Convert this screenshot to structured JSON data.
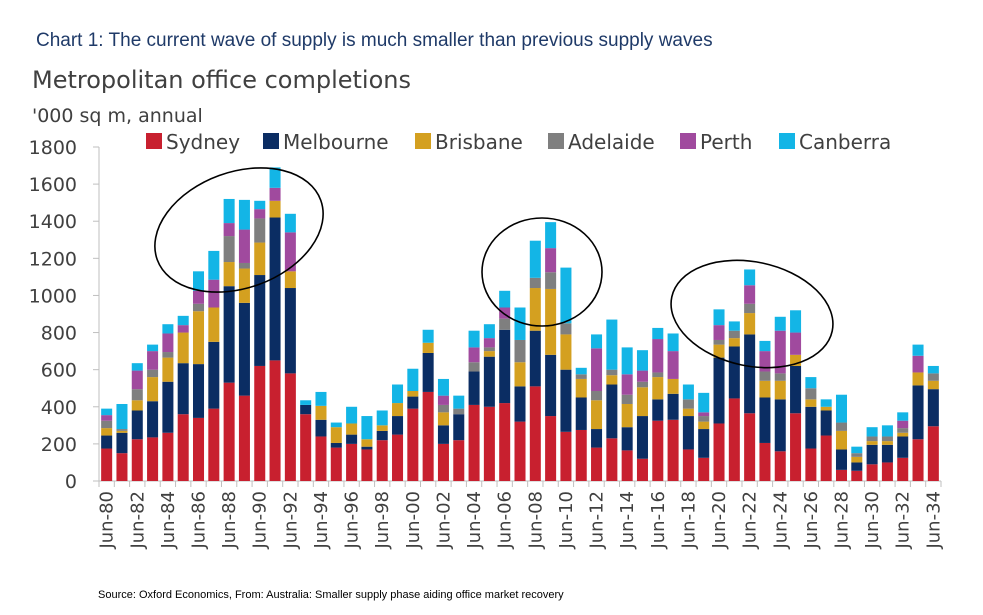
{
  "header": {
    "title": "Chart 1: The current wave of supply is much smaller than previous supply waves"
  },
  "source": "Source: Oxford Economics, From: Australia: Smaller supply phase aiding office market recovery",
  "chart_data": {
    "type": "bar",
    "stacked": true,
    "title": "Metropolitan office completions",
    "ylabel": "'000 sq m, annual",
    "xlabel": "",
    "ylim": [
      0,
      1800
    ],
    "yticks": [
      0,
      200,
      400,
      600,
      800,
      1000,
      1200,
      1400,
      1600,
      1800
    ],
    "grid": false,
    "legend_position": "top",
    "categories": [
      "Jun-80",
      "Jun-81",
      "Jun-82",
      "Jun-83",
      "Jun-84",
      "Jun-85",
      "Jun-86",
      "Jun-87",
      "Jun-88",
      "Jun-89",
      "Jun-90",
      "Jun-91",
      "Jun-92",
      "Jun-93",
      "Jun-94",
      "Jun-95",
      "Jun-96",
      "Jun-97",
      "Jun-98",
      "Jun-99",
      "Jun-00",
      "Jun-01",
      "Jun-02",
      "Jun-03",
      "Jun-04",
      "Jun-05",
      "Jun-06",
      "Jun-07",
      "Jun-08",
      "Jun-09",
      "Jun-10",
      "Jun-11",
      "Jun-12",
      "Jun-13",
      "Jun-14",
      "Jun-15",
      "Jun-16",
      "Jun-17",
      "Jun-18",
      "Jun-19",
      "Jun-20",
      "Jun-21",
      "Jun-22",
      "Jun-23",
      "Jun-24",
      "Jun-25",
      "Jun-26",
      "Jun-27",
      "Jun-28",
      "Jun-29",
      "Jun-30",
      "Jun-31",
      "Jun-32",
      "Jun-33",
      "Jun-34"
    ],
    "tick_labels": [
      "Jun-80",
      "Jun-82",
      "Jun-84",
      "Jun-86",
      "Jun-88",
      "Jun-90",
      "Jun-92",
      "Jun-94",
      "Jun-96",
      "Jun-98",
      "Jun-00",
      "Jun-02",
      "Jun-04",
      "Jun-06",
      "Jun-08",
      "Jun-10",
      "Jun-12",
      "Jun-14",
      "Jun-16",
      "Jun-18",
      "Jun-20",
      "Jun-22",
      "Jun-24",
      "Jun-26",
      "Jun-28",
      "Jun-30",
      "Jun-32",
      "Jun-34"
    ],
    "series": [
      {
        "name": "Sydney",
        "color": "#c8202f",
        "values": [
          175,
          150,
          225,
          235,
          260,
          360,
          340,
          390,
          530,
          460,
          620,
          650,
          580,
          360,
          240,
          180,
          200,
          170,
          220,
          250,
          390,
          480,
          200,
          220,
          410,
          400,
          420,
          320,
          510,
          350,
          265,
          275,
          180,
          230,
          165,
          120,
          325,
          330,
          170,
          125,
          310,
          445,
          365,
          205,
          160,
          365,
          175,
          245,
          60,
          55,
          90,
          100,
          125,
          225,
          295
        ]
      },
      {
        "name": "Melbourne",
        "color": "#0b2d63",
        "values": [
          70,
          110,
          155,
          195,
          275,
          275,
          290,
          360,
          520,
          500,
          490,
          770,
          460,
          50,
          90,
          25,
          50,
          15,
          50,
          100,
          65,
          210,
          100,
          140,
          180,
          270,
          395,
          190,
          300,
          330,
          335,
          175,
          100,
          290,
          125,
          230,
          115,
          140,
          180,
          155,
          355,
          280,
          425,
          245,
          280,
          255,
          225,
          135,
          110,
          45,
          105,
          95,
          115,
          290,
          200
        ]
      },
      {
        "name": "Brisbane",
        "color": "#d4a020",
        "values": [
          40,
          10,
          55,
          130,
          130,
          165,
          285,
          185,
          130,
          185,
          175,
          90,
          90,
          0,
          75,
          85,
          60,
          40,
          30,
          70,
          30,
          55,
          70,
          0,
          0,
          30,
          0,
          130,
          230,
          355,
          190,
          100,
          155,
          50,
          125,
          155,
          120,
          80,
          40,
          40,
          70,
          45,
          115,
          90,
          100,
          60,
          40,
          20,
          100,
          30,
          20,
          20,
          20,
          70,
          45
        ]
      },
      {
        "name": "Adelaide",
        "color": "#7f7f7f",
        "values": [
          40,
          10,
          60,
          40,
          30,
          0,
          40,
          0,
          140,
          30,
          130,
          0,
          0,
          0,
          0,
          0,
          0,
          0,
          0,
          0,
          0,
          0,
          40,
          30,
          50,
          20,
          60,
          120,
          55,
          90,
          60,
          25,
          50,
          30,
          50,
          30,
          25,
          0,
          50,
          30,
          25,
          40,
          50,
          50,
          40,
          0,
          60,
          0,
          45,
          20,
          25,
          25,
          25,
          0,
          40
        ]
      },
      {
        "name": "Perth",
        "color": "#a04a9e",
        "values": [
          30,
          0,
          100,
          100,
          100,
          40,
          70,
          150,
          70,
          180,
          50,
          70,
          210,
          0,
          0,
          0,
          0,
          0,
          0,
          0,
          0,
          0,
          50,
          0,
          80,
          50,
          60,
          0,
          0,
          130,
          0,
          0,
          230,
          0,
          110,
          60,
          180,
          150,
          0,
          20,
          80,
          0,
          100,
          110,
          230,
          120,
          0,
          0,
          0,
          0,
          0,
          0,
          40,
          90,
          0
        ]
      },
      {
        "name": "Canberra",
        "color": "#13b5e6",
        "values": [
          35,
          135,
          40,
          35,
          50,
          50,
          105,
          155,
          130,
          160,
          45,
          110,
          100,
          25,
          75,
          25,
          90,
          125,
          80,
          100,
          120,
          70,
          90,
          70,
          90,
          75,
          90,
          175,
          200,
          140,
          300,
          35,
          75,
          270,
          145,
          110,
          60,
          95,
          80,
          105,
          85,
          50,
          85,
          55,
          75,
          120,
          60,
          40,
          150,
          35,
          50,
          60,
          45,
          60,
          40
        ]
      }
    ]
  }
}
